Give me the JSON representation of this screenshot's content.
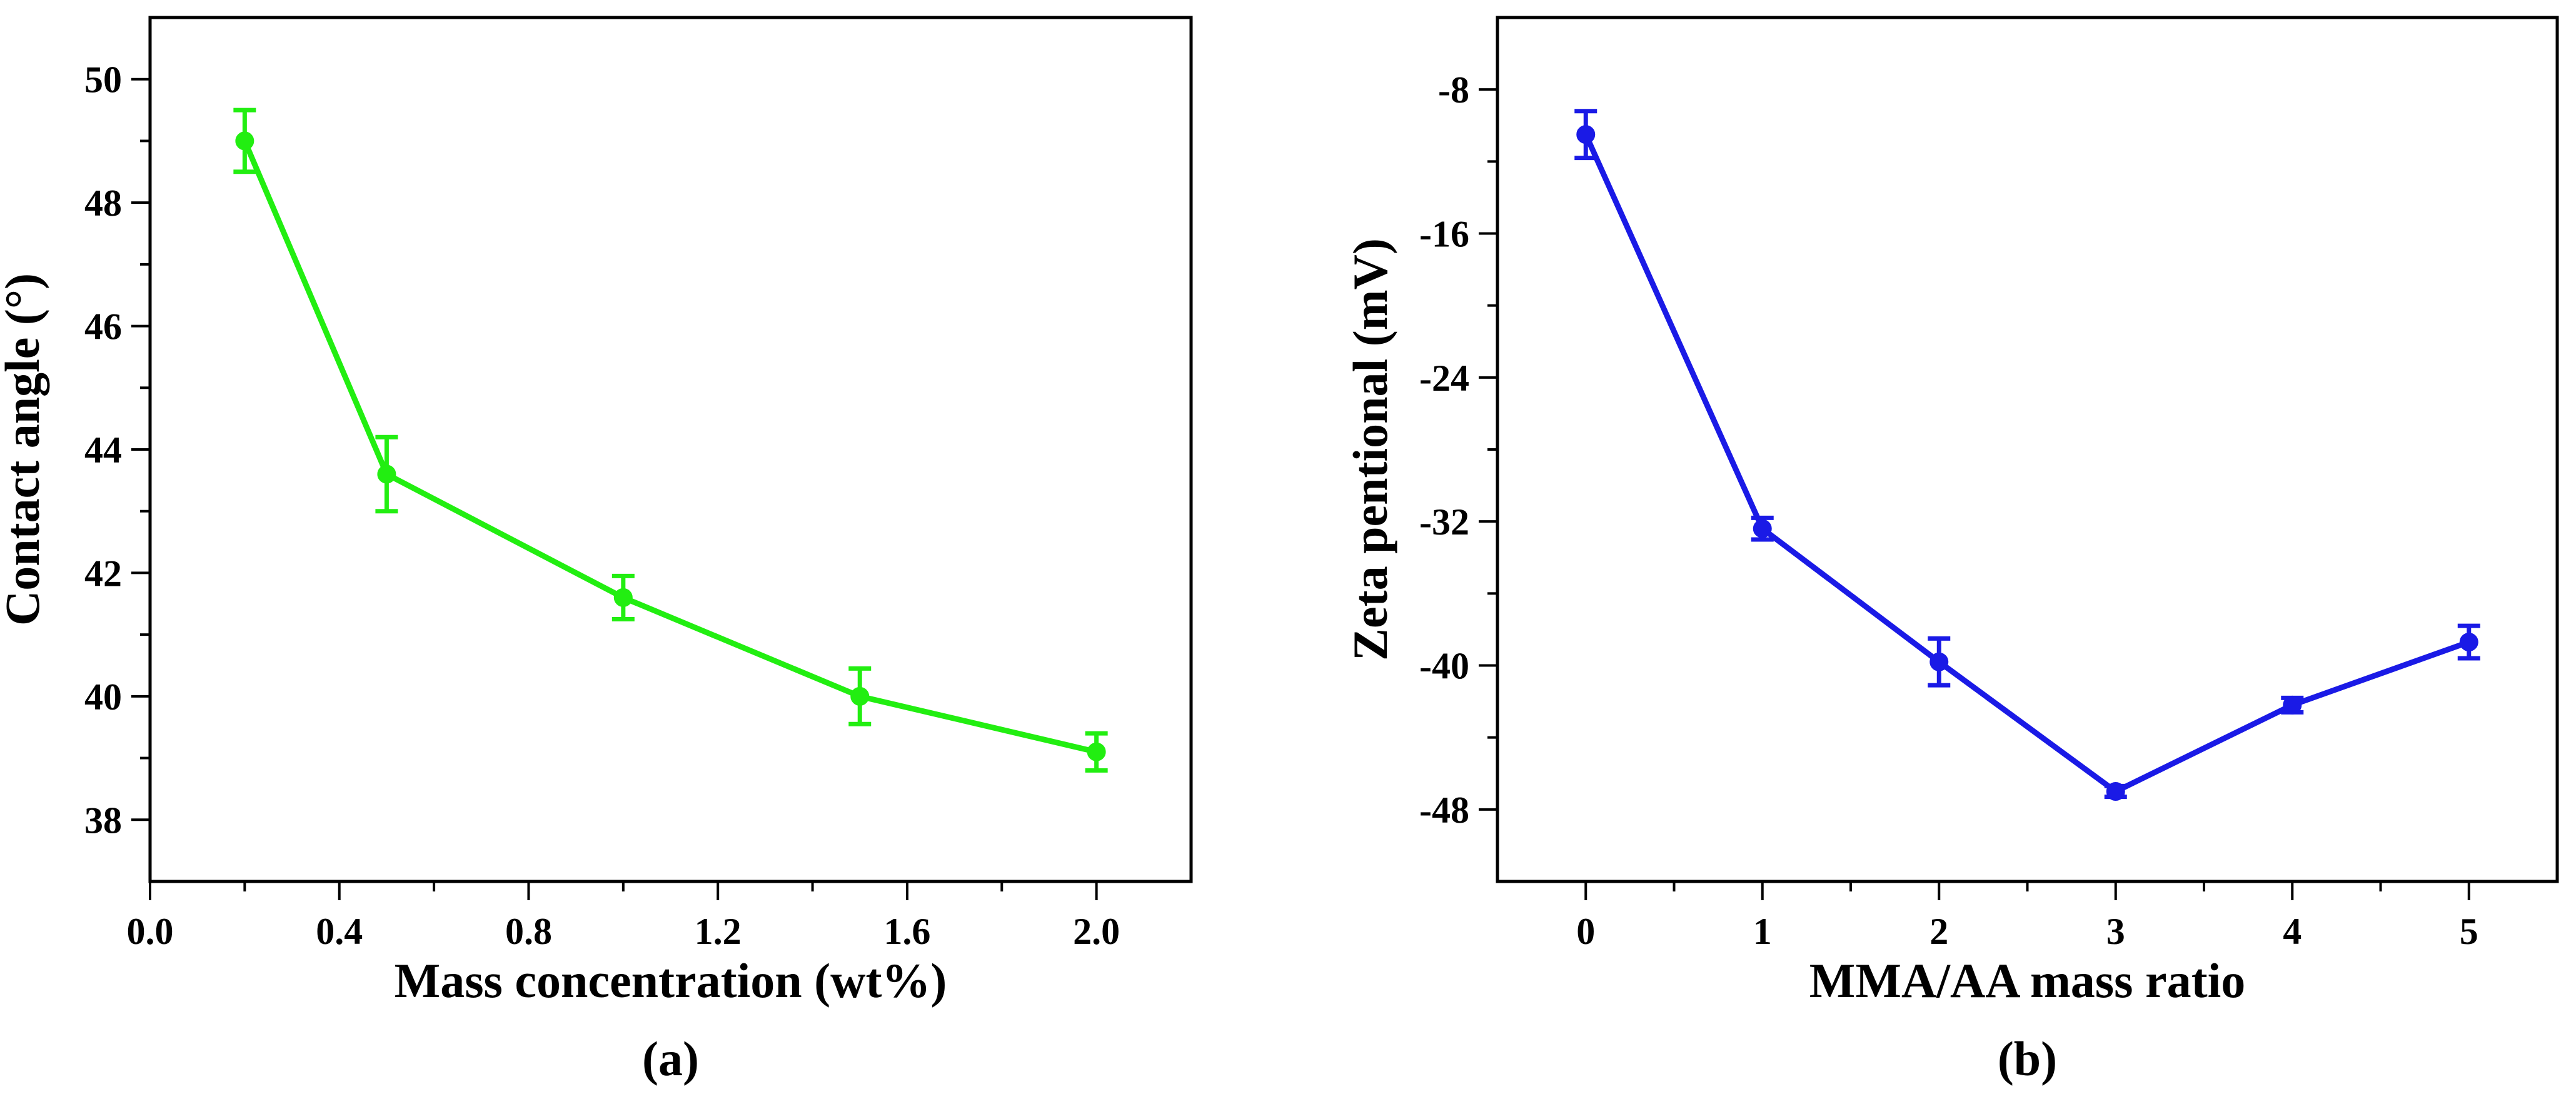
{
  "chart_data": [
    {
      "type": "line",
      "panel_label": "(a)",
      "xlabel": "Mass concentration (wt%)",
      "ylabel": "Contact angle (°)",
      "xlim": [
        0.0,
        2.2
      ],
      "ylim": [
        37.0,
        51.0
      ],
      "xticks": [
        0.0,
        0.4,
        0.8,
        1.2,
        1.6,
        2.0
      ],
      "xtick_labels": [
        "0.0",
        "0.4",
        "0.8",
        "1.2",
        "1.6",
        "2.0"
      ],
      "yticks": [
        38,
        40,
        42,
        44,
        46,
        48,
        50
      ],
      "ytick_labels": [
        "38",
        "40",
        "42",
        "44",
        "46",
        "48",
        "50"
      ],
      "grid": false,
      "color": "#22ee11",
      "x": [
        0.2,
        0.5,
        1.0,
        1.5,
        2.0
      ],
      "y": [
        49.0,
        43.6,
        41.6,
        40.0,
        39.1
      ],
      "error": [
        0.5,
        0.6,
        0.35,
        0.45,
        0.3
      ]
    },
    {
      "type": "line",
      "panel_label": "(b)",
      "xlabel": "MMA/AA mass ratio",
      "ylabel": "Zeta pentional (mV)",
      "xlim": [
        -0.5,
        5.5
      ],
      "ylim": [
        -52.0,
        -4.0
      ],
      "xticks": [
        0,
        1,
        2,
        3,
        4,
        5
      ],
      "xtick_labels": [
        "0",
        "1",
        "2",
        "3",
        "4",
        "5"
      ],
      "yticks": [
        -48,
        -40,
        -32,
        -24,
        -16,
        -8
      ],
      "ytick_labels": [
        "-48",
        "-40",
        "-32",
        "-24",
        "-16",
        "-8"
      ],
      "grid": false,
      "color": "#1a1ae6",
      "x": [
        0,
        1,
        2,
        3,
        4,
        5
      ],
      "y": [
        -10.5,
        -32.4,
        -39.8,
        -47.0,
        -42.2,
        -38.7
      ],
      "error": [
        1.3,
        0.6,
        1.3,
        0.3,
        0.4,
        0.9
      ]
    }
  ]
}
